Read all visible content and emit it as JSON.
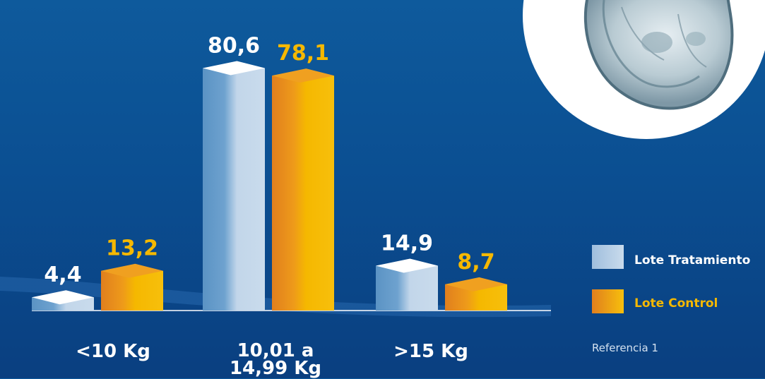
{
  "chart_data": {
    "type": "bar",
    "categories": [
      "<10 Kg",
      "10,01 a 14,99 Kg",
      ">15 Kg"
    ],
    "category_lines": [
      [
        "<10 Kg"
      ],
      [
        "10,01 a",
        "14,99 Kg"
      ],
      [
        ">15 Kg"
      ]
    ],
    "series": [
      {
        "name": "Lote Tratamiento",
        "values": [
          4.4,
          80.6,
          14.9
        ],
        "labels": [
          "4,4",
          "80,6",
          "14,9"
        ],
        "color": "#c2d6ea"
      },
      {
        "name": "Lote Control",
        "values": [
          13.2,
          78.1,
          8.7
        ],
        "labels": [
          "13,2",
          "78,1",
          "8,7"
        ],
        "color": "#f5b800"
      }
    ],
    "ylim": [
      0,
      85
    ],
    "legend": "right"
  },
  "reference": "Referencia 1",
  "colors": {
    "tratamiento_light": "#c2d6ea",
    "tratamiento_dark": "#5b93c4",
    "control_light": "#f5b800",
    "control_dark": "#e07f1e",
    "label_control": "#f5b800",
    "label_tratamiento": "#ffffff"
  }
}
